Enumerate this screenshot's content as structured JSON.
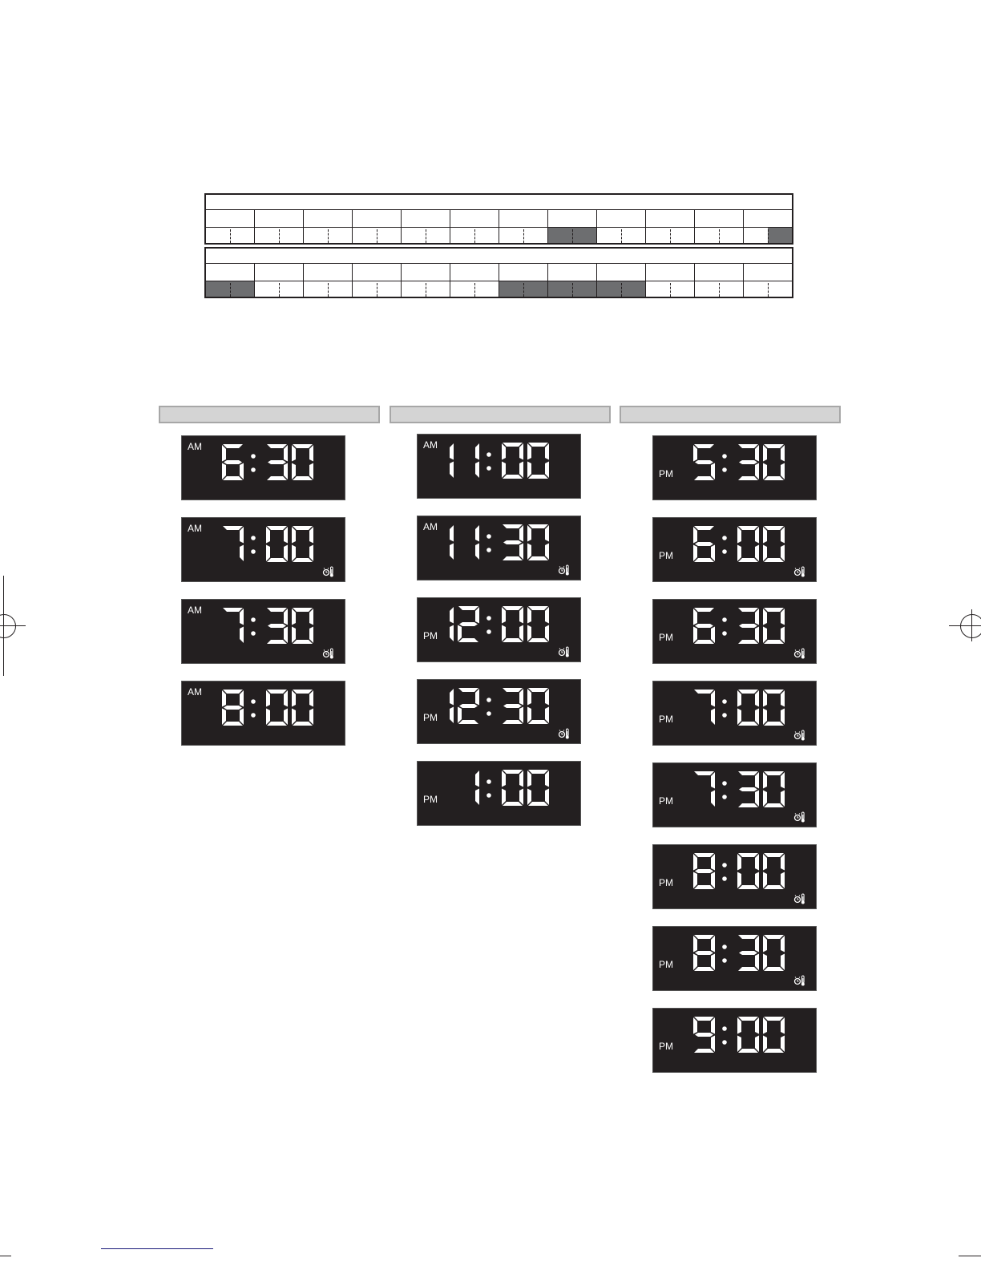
{
  "schedules": [
    {
      "columns": 12,
      "shaded_halves": [
        [
          false,
          false
        ],
        [
          false,
          false
        ],
        [
          false,
          false
        ],
        [
          false,
          false
        ],
        [
          false,
          false
        ],
        [
          false,
          false
        ],
        [
          false,
          false
        ],
        [
          true,
          true
        ],
        [
          false,
          false
        ],
        [
          false,
          false
        ],
        [
          false,
          false
        ],
        [
          false,
          true
        ]
      ]
    },
    {
      "columns": 12,
      "shaded_halves": [
        [
          true,
          true
        ],
        [
          false,
          false
        ],
        [
          false,
          false
        ],
        [
          false,
          false
        ],
        [
          false,
          false
        ],
        [
          false,
          false
        ],
        [
          true,
          true
        ],
        [
          true,
          true
        ],
        [
          true,
          true
        ],
        [
          false,
          false
        ],
        [
          false,
          false
        ],
        [
          false,
          false
        ]
      ]
    }
  ],
  "display_columns": [
    {
      "items": [
        {
          "period": "AM",
          "time": "6:30",
          "timer_icon": false
        },
        {
          "period": "AM",
          "time": "7:00",
          "timer_icon": true
        },
        {
          "period": "AM",
          "time": "7:30",
          "timer_icon": true
        },
        {
          "period": "AM",
          "time": "8:00",
          "timer_icon": false
        }
      ]
    },
    {
      "items": [
        {
          "period": "AM",
          "time": "11:00",
          "timer_icon": false
        },
        {
          "period": "AM",
          "time": "11:30",
          "timer_icon": true
        },
        {
          "period": "PM",
          "time": "12:00",
          "timer_icon": true
        },
        {
          "period": "PM",
          "time": "12:30",
          "timer_icon": true
        },
        {
          "period": "PM",
          "time": "1:00",
          "timer_icon": false
        }
      ]
    },
    {
      "items": [
        {
          "period": "PM",
          "time": "5:30",
          "timer_icon": false
        },
        {
          "period": "PM",
          "time": "6:00",
          "timer_icon": true
        },
        {
          "period": "PM",
          "time": "6:30",
          "timer_icon": true
        },
        {
          "period": "PM",
          "time": "7:00",
          "timer_icon": true
        },
        {
          "period": "PM",
          "time": "7:30",
          "timer_icon": true
        },
        {
          "period": "PM",
          "time": "8:00",
          "timer_icon": true
        },
        {
          "period": "PM",
          "time": "8:30",
          "timer_icon": true
        },
        {
          "period": "PM",
          "time": "9:00",
          "timer_icon": false
        }
      ]
    }
  ],
  "colors": {
    "display_bg": "#231f20",
    "segment": "#ffffff",
    "shaded": "#6d6e70",
    "column_bar": "#d4d4d4",
    "rule": "#1a1a7a"
  }
}
